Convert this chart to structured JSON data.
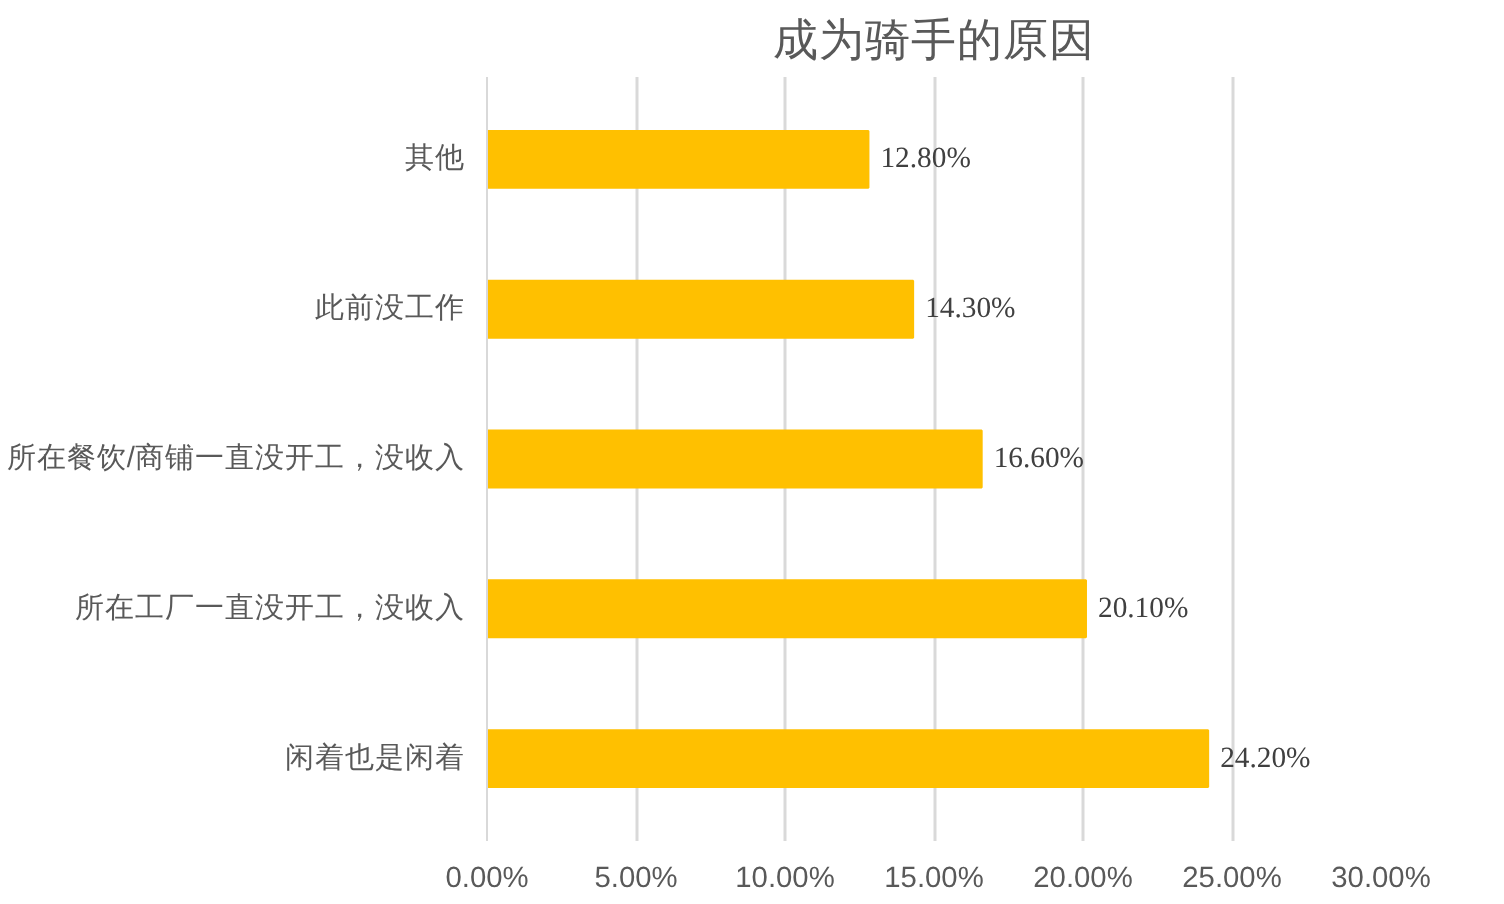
{
  "chart_data": {
    "type": "bar",
    "orientation": "horizontal",
    "title": "成为骑手的原因",
    "categories": [
      "其他",
      "此前没工作",
      "所在餐饮/商铺一直没开工，没收入",
      "所在工厂一直没开工，没收入",
      "闲着也是闲着"
    ],
    "values": [
      12.8,
      14.3,
      16.6,
      20.1,
      24.2
    ],
    "value_labels": [
      "12.80%",
      "14.30%",
      "16.60%",
      "20.10%",
      "24.20%"
    ],
    "color": "#ffc000",
    "xlim": [
      0,
      30
    ],
    "xticks": [
      {
        "value": 0,
        "label": "0.00%"
      },
      {
        "value": 5,
        "label": "5.00%"
      },
      {
        "value": 10,
        "label": "10.00%"
      },
      {
        "value": 15,
        "label": "15.00%"
      },
      {
        "value": 20,
        "label": "20.00%"
      },
      {
        "value": 25,
        "label": "25.00%"
      },
      {
        "value": 30,
        "label": "30.00%"
      }
    ],
    "grid": "x"
  }
}
